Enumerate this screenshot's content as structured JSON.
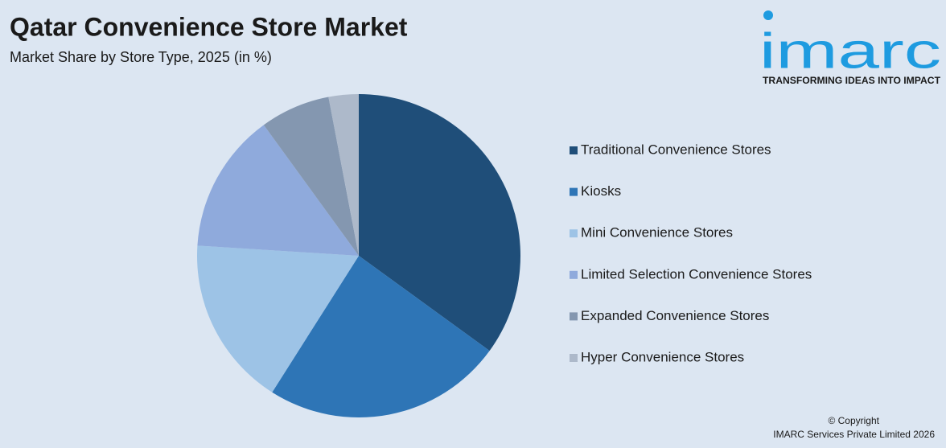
{
  "chart_data": {
    "type": "pie",
    "title": "Qatar Convenience Store Market",
    "subtitle": "Market Share by Store Type, 2025 (in %)",
    "categories": [
      "Traditional Convenience Stores",
      "Kiosks",
      "Mini Convenience Stores",
      "Limited Selection Convenience Stores",
      "Expanded Convenience Stores",
      "Hyper Convenience Stores"
    ],
    "values": [
      35,
      24,
      17,
      14,
      7,
      3
    ],
    "colors": [
      "#1f4e79",
      "#2e75b6",
      "#9dc3e6",
      "#8faadc",
      "#8497b0",
      "#adb9ca"
    ],
    "legend": "right"
  },
  "logo": {
    "name": "imarc",
    "tagline": "TRANSFORMING IDEAS INTO IMPACT"
  },
  "footer": {
    "copyright": "© Copyright",
    "owner": "IMARC Services Private Limited 2026"
  }
}
